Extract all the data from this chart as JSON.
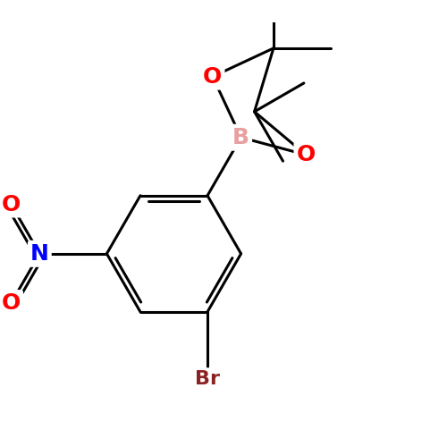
{
  "background_color": "#ffffff",
  "bond_color": "#000000",
  "bond_width": 2.2,
  "atom_colors": {
    "B": "#e8a0a0",
    "O": "#ff0000",
    "N": "#0000ff",
    "Br": "#8b2222",
    "C": "#000000"
  },
  "font_size_atom": 18,
  "font_size_br": 16
}
